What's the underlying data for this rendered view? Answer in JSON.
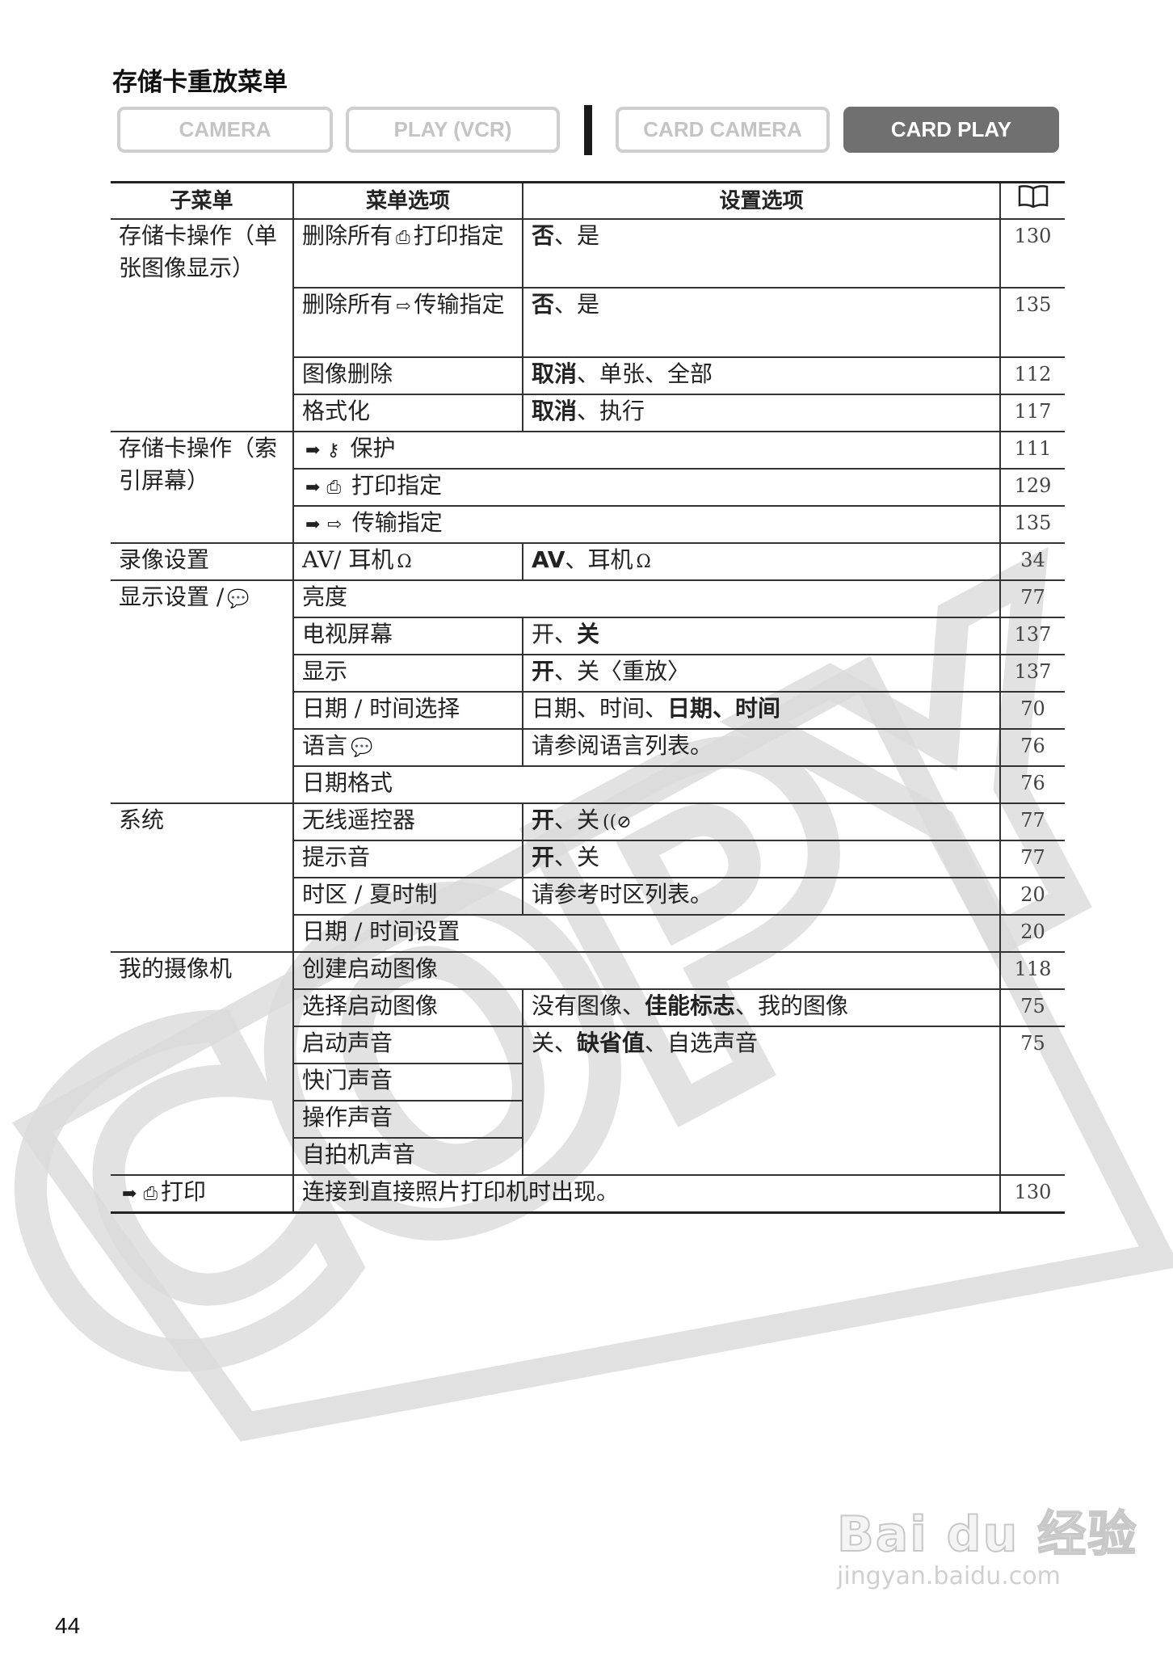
{
  "title": "存储卡重放菜单",
  "modes": [
    {
      "label": "CAMERA",
      "active": false
    },
    {
      "label": "PLAY (VCR)",
      "active": false
    },
    {
      "label": "CARD CAMERA",
      "active": false
    },
    {
      "label": "CARD PLAY",
      "active": true
    }
  ],
  "table": {
    "headers": [
      "子菜单",
      "菜单选项",
      "设置选项",
      "book-icon"
    ],
    "rows": [
      {
        "sub": "存储卡操作（单张图像显示）",
        "subspan": 4,
        "item": [
          {
            "t": "删除所有"
          },
          {
            "icon": "print-icon",
            "g": "⎙"
          },
          {
            "t": "打印指定"
          }
        ],
        "setting": [
          {
            "t": "否",
            "b": true
          },
          {
            "t": "、是"
          }
        ],
        "page": "130",
        "h": 85
      },
      {
        "item": [
          {
            "t": "删除所有"
          },
          {
            "icon": "transfer-icon",
            "g": "⇨"
          },
          {
            "t": "传输指定"
          }
        ],
        "setting": [
          {
            "t": "否",
            "b": true
          },
          {
            "t": "、是"
          }
        ],
        "page": "135",
        "h": 86
      },
      {
        "item": [
          {
            "t": "图像删除"
          }
        ],
        "setting": [
          {
            "t": "取消",
            "b": true
          },
          {
            "t": "、单张、全部"
          }
        ],
        "page": "112"
      },
      {
        "item": [
          {
            "t": "格式化"
          }
        ],
        "setting": [
          {
            "t": "取消",
            "b": true
          },
          {
            "t": "、执行"
          }
        ],
        "page": "117"
      },
      {
        "sub": "存储卡操作（索引屏幕）",
        "subspan": 3,
        "span2": true,
        "item": [
          {
            "icon": "arrow-icon",
            "g": "➡"
          },
          {
            "icon": "key-icon",
            "g": "⚷"
          },
          {
            "t": " 保护"
          }
        ],
        "page": "111"
      },
      {
        "span2": true,
        "item": [
          {
            "icon": "arrow-icon",
            "g": "➡"
          },
          {
            "icon": "print-icon",
            "g": "⎙"
          },
          {
            "t": " 打印指定"
          }
        ],
        "page": "129"
      },
      {
        "span2": true,
        "item": [
          {
            "icon": "arrow-icon",
            "g": "➡"
          },
          {
            "icon": "transfer-icon",
            "g": "⇨"
          },
          {
            "t": " 传输指定"
          }
        ],
        "page": "135"
      },
      {
        "sub": "录像设置",
        "subspan": 1,
        "item": [
          {
            "t": "AV/ 耳机"
          },
          {
            "icon": "headphone-icon",
            "g": "Ω"
          }
        ],
        "setting": [
          {
            "t": "AV",
            "b": true
          },
          {
            "t": "、耳机"
          },
          {
            "icon": "headphone-icon",
            "g": "Ω"
          }
        ],
        "page": "34"
      },
      {
        "sub": "显示设置 /",
        "subicon": "language-icon",
        "subspan": 6,
        "span2": true,
        "item": [
          {
            "t": "亮度"
          }
        ],
        "page": "77"
      },
      {
        "item": [
          {
            "t": "电视屏幕"
          }
        ],
        "setting": [
          {
            "t": "开、"
          },
          {
            "t": "关",
            "b": true
          }
        ],
        "page": "137"
      },
      {
        "item": [
          {
            "t": "显示"
          }
        ],
        "setting": [
          {
            "t": "开",
            "b": true
          },
          {
            "t": "、关〈重放〉"
          }
        ],
        "page": "137"
      },
      {
        "item": [
          {
            "t": "日期 / 时间选择"
          }
        ],
        "setting": [
          {
            "t": "日期、时间、"
          },
          {
            "t": "日期、时间",
            "b": true
          }
        ],
        "page": "70"
      },
      {
        "item": [
          {
            "t": "语言"
          },
          {
            "icon": "language-icon",
            "g": "💬"
          }
        ],
        "setting": [
          {
            "t": "请参阅语言列表。"
          }
        ],
        "page": "76"
      },
      {
        "span2": true,
        "item": [
          {
            "t": "日期格式"
          }
        ],
        "page": "76"
      },
      {
        "sub": "系统",
        "subspan": 4,
        "item": [
          {
            "t": "无线遥控器"
          }
        ],
        "setting": [
          {
            "t": "开",
            "b": true
          },
          {
            "t": "、关"
          },
          {
            "icon": "remote-off-icon",
            "g": "((⊘"
          }
        ],
        "page": "77"
      },
      {
        "item": [
          {
            "t": "提示音"
          }
        ],
        "setting": [
          {
            "t": "开",
            "b": true
          },
          {
            "t": "、关"
          }
        ],
        "page": "77"
      },
      {
        "item": [
          {
            "t": "时区 / 夏时制"
          }
        ],
        "setting": [
          {
            "t": "请参考时区列表。"
          }
        ],
        "page": "20"
      },
      {
        "span2": true,
        "item": [
          {
            "t": "日期 / 时间设置"
          }
        ],
        "page": "20"
      },
      {
        "sub": "我的摄像机",
        "subspan": 6,
        "span2": true,
        "item": [
          {
            "t": "创建启动图像"
          }
        ],
        "page": "118"
      },
      {
        "item": [
          {
            "t": "选择启动图像"
          }
        ],
        "setting": [
          {
            "t": "没有图像、"
          },
          {
            "t": "佳能标志",
            "b": true
          },
          {
            "t": "、我的图像"
          }
        ],
        "page": "75"
      },
      {
        "item": [
          {
            "t": "启动声音"
          }
        ],
        "setting": [
          {
            "t": "关、"
          },
          {
            "t": "缺省值",
            "b": true
          },
          {
            "t": "、自选声音"
          }
        ],
        "setspan": 4,
        "page": "75"
      },
      {
        "item": [
          {
            "t": "快门声音"
          }
        ],
        "skipset": true
      },
      {
        "item": [
          {
            "t": "操作声音"
          }
        ],
        "skipset": true
      },
      {
        "item": [
          {
            "t": "自拍机声音"
          }
        ],
        "skipset": true
      },
      {
        "sub": "打印",
        "subicons": [
          "arrow-icon",
          "print-icon"
        ],
        "subspan": 1,
        "span2": true,
        "item": [
          {
            "t": "连接到直接照片打印机时出现。"
          }
        ],
        "page": "130"
      }
    ]
  },
  "page_number": "44",
  "watermarks": {
    "copy": "COPY",
    "baidu_logo": "Bai du 经验",
    "baidu_url": "jingyan.baidu.com"
  },
  "colors": {
    "active_mode": "#707070",
    "inactive_mode_border": "#cfcfcf",
    "watermark": "#d9d9d9"
  }
}
